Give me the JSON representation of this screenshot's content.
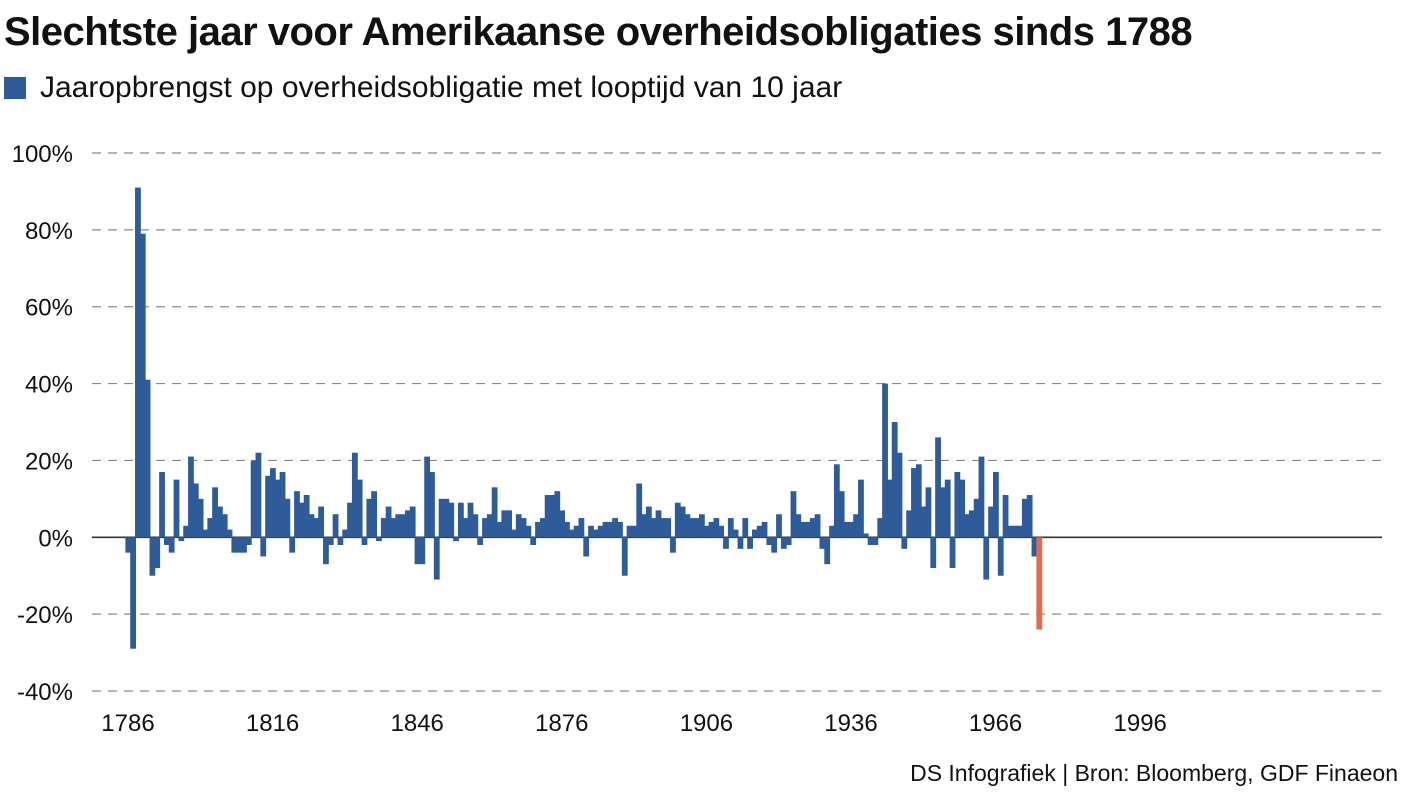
{
  "chart_data": {
    "type": "bar",
    "title": "Slechtste jaar voor Amerikaanse overheidsobligaties sinds 1788",
    "legend": [
      "Jaaropbrengst op overheidsobligatie met looptijd van 10 jaar"
    ],
    "ylim": [
      -40,
      100
    ],
    "y_ticks": [
      100,
      80,
      60,
      40,
      20,
      0,
      -20,
      -40
    ],
    "y_tick_labels": [
      "100%",
      "80%",
      "60%",
      "40%",
      "20%",
      "0%",
      "-20%",
      "-40%"
    ],
    "x_tick_labels": [
      "1786",
      "1816",
      "1846",
      "1876",
      "1906",
      "1936",
      "1966",
      "1996"
    ],
    "x_tick_years": [
      1786,
      1816,
      1846,
      1876,
      1906,
      1936,
      1966,
      1996
    ],
    "grid": "horizontal dashed",
    "start_year": 1786,
    "values": [
      -4,
      -29,
      91,
      79,
      41,
      -10,
      -8,
      17,
      -2,
      -4,
      15,
      -1,
      3,
      21,
      14,
      10,
      2,
      5,
      13,
      8,
      6,
      2,
      -4,
      -4,
      -4,
      -2,
      20,
      22,
      -5,
      16,
      18,
      15,
      17,
      10,
      -4,
      12,
      9,
      11,
      6,
      5,
      8,
      -7,
      -2,
      6,
      -2,
      2,
      9,
      22,
      15,
      -2,
      10,
      12,
      -1,
      5,
      8,
      5,
      6,
      6,
      7,
      8,
      -7,
      -7,
      21,
      17,
      -11,
      10,
      10,
      9,
      -1,
      9,
      5,
      9,
      6,
      -2,
      5,
      6,
      13,
      4,
      7,
      7,
      2,
      6,
      5,
      3,
      -2,
      4,
      5,
      11,
      11,
      12,
      7,
      4,
      2,
      3,
      5,
      -5,
      3,
      2,
      3,
      4,
      4,
      5,
      4,
      -10,
      3,
      3,
      14,
      6,
      8,
      5,
      7,
      5,
      5,
      -4,
      9,
      8,
      6,
      5,
      5,
      6,
      3,
      4,
      5,
      3,
      -3,
      5,
      2,
      -3,
      5,
      -3,
      2,
      3,
      4,
      -2,
      -4,
      6,
      -3,
      -2,
      12,
      6,
      4,
      4,
      5,
      6,
      -3,
      -7,
      3,
      19,
      12,
      4,
      4,
      6,
      15,
      1,
      -2,
      -2,
      5,
      40,
      15,
      30,
      22,
      -3,
      7,
      18,
      19,
      8,
      13,
      -8,
      26,
      13,
      15,
      -8,
      17,
      15,
      6,
      7,
      10,
      21,
      -11,
      8,
      17,
      -10,
      11,
      3,
      3,
      3,
      10,
      11,
      -5,
      -24
    ]
  },
  "source": "DS Infografiek | Bron: Bloomberg, GDF Finaeon",
  "colors": {
    "bar": "#2f5c99",
    "highlight": "#e26b4e",
    "grid": "#8a8a8a",
    "axis": "#333333",
    "text": "#111111"
  }
}
